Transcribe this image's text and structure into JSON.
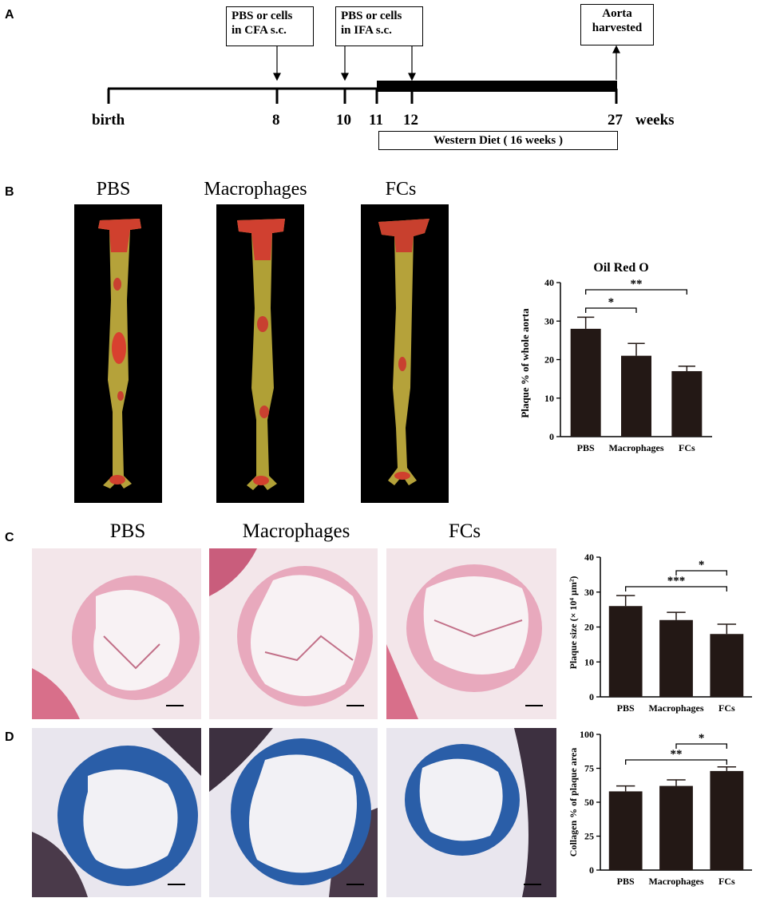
{
  "panels": {
    "a": "A",
    "b": "B",
    "c": "C",
    "d": "D"
  },
  "timeline": {
    "box1": [
      "PBS or cells",
      "in CFA s.c."
    ],
    "box2": [
      "PBS or cells",
      "in IFA s.c."
    ],
    "box3": [
      "Aorta",
      "harvested"
    ],
    "labels": {
      "birth": "birth",
      "t8": "8",
      "t10": "10",
      "t11": "11",
      "t12": "12",
      "t27": "27",
      "weeks": "weeks"
    },
    "diet": "Western Diet ( 16 weeks )"
  },
  "groups": {
    "pbs": "PBS",
    "macrophages": "Macrophages",
    "fcs": "FCs"
  },
  "colors": {
    "bar": "#231815",
    "aorta_bg": "#000000",
    "he_tissue": "#e8a9bd",
    "mt_collagen": "#2a5ea8"
  },
  "chart_data": [
    {
      "type": "bar",
      "panel": "B",
      "title": "Oil Red O",
      "ylabel": "Plaque % of whole aorta",
      "categories": [
        "PBS",
        "Macrophages",
        "FCs"
      ],
      "values": [
        28,
        21,
        17
      ],
      "errors": [
        3,
        3.2,
        1.3
      ],
      "ylim": [
        0,
        40
      ],
      "yticks": [
        "0",
        "10",
        "20",
        "30",
        "40"
      ],
      "significance": [
        {
          "from": 0,
          "to": 1,
          "label": "*"
        },
        {
          "from": 0,
          "to": 2,
          "label": "**"
        }
      ]
    },
    {
      "type": "bar",
      "panel": "C",
      "ylabel": "Plaque size (× 10⁴ μm²)",
      "categories": [
        "PBS",
        "Macrophages",
        "FCs"
      ],
      "values": [
        26,
        22,
        18
      ],
      "errors": [
        3,
        2.2,
        2.8
      ],
      "ylim": [
        0,
        40
      ],
      "yticks": [
        "0",
        "10",
        "20",
        "30",
        "40"
      ],
      "significance": [
        {
          "from": 0,
          "to": 2,
          "label": "***"
        },
        {
          "from": 1,
          "to": 2,
          "label": "*"
        }
      ]
    },
    {
      "type": "bar",
      "panel": "D",
      "ylabel": "Collagen % of plaque area",
      "categories": [
        "PBS",
        "Macrophages",
        "FCs"
      ],
      "values": [
        58,
        62,
        73
      ],
      "errors": [
        4,
        4.5,
        3
      ],
      "ylim": [
        0,
        100
      ],
      "yticks": [
        "0",
        "25",
        "50",
        "75",
        "100"
      ],
      "significance": [
        {
          "from": 0,
          "to": 2,
          "label": "**"
        },
        {
          "from": 1,
          "to": 2,
          "label": "*"
        }
      ]
    }
  ]
}
